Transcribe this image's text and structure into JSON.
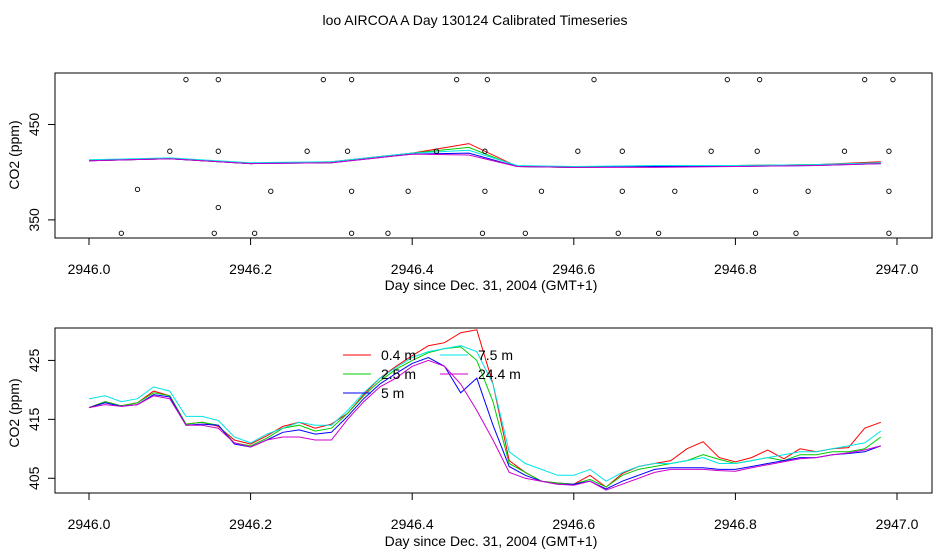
{
  "title": "loo AIRCOA A  Day 130124  Calibrated Timeseries",
  "chart_data": [
    {
      "type": "line",
      "xlabel": "Day since Dec. 31, 2004 (GMT+1)",
      "ylabel": "CO2 (ppm)",
      "xlim": [
        2946.0,
        2947.0
      ],
      "ylim": [
        331,
        504
      ],
      "xticks": [
        "2946.0",
        "2946.2",
        "2946.4",
        "2946.6",
        "2946.8",
        "2947.0"
      ],
      "xtick_values": [
        2946.0,
        2946.2,
        2946.4,
        2946.6,
        2946.8,
        2947.0
      ],
      "yticks": [
        "350",
        "450"
      ],
      "ytick_values": [
        350,
        450
      ],
      "series": [
        {
          "color": "#ff0000",
          "x": [
            2946.0,
            2946.1,
            2946.2,
            2946.3,
            2946.4,
            2946.47,
            2946.53,
            2946.6,
            2946.7,
            2946.8,
            2946.9,
            2946.98
          ],
          "values": [
            412,
            414,
            409,
            411,
            420,
            430,
            406,
            405,
            406,
            407,
            408,
            411
          ]
        },
        {
          "color": "#00cc00",
          "x": [
            2946.0,
            2946.1,
            2946.2,
            2946.3,
            2946.4,
            2946.47,
            2946.53,
            2946.6,
            2946.7,
            2946.8,
            2946.9,
            2946.98
          ],
          "values": [
            412,
            414,
            409,
            410,
            420,
            426,
            406,
            405,
            406,
            407,
            408,
            410
          ]
        },
        {
          "color": "#0000ff",
          "x": [
            2946.0,
            2946.1,
            2946.2,
            2946.3,
            2946.4,
            2946.47,
            2946.53,
            2946.6,
            2946.7,
            2946.8,
            2946.9,
            2946.98
          ],
          "values": [
            412,
            414,
            409,
            410,
            419,
            420,
            406,
            405,
            406,
            406,
            407,
            409
          ]
        },
        {
          "color": "#00e5e5",
          "x": [
            2946.0,
            2946.1,
            2946.2,
            2946.3,
            2946.4,
            2946.47,
            2946.53,
            2946.6,
            2946.7,
            2946.8,
            2946.9,
            2946.98
          ],
          "values": [
            413,
            415,
            410,
            411,
            420,
            423,
            407,
            406,
            407,
            407,
            408,
            410
          ]
        },
        {
          "color": "#cc00cc",
          "x": [
            2946.0,
            2946.1,
            2946.2,
            2946.3,
            2946.4,
            2946.47,
            2946.53,
            2946.6,
            2946.7,
            2946.8,
            2946.9,
            2946.98
          ],
          "values": [
            412,
            414,
            409,
            410,
            419,
            418,
            406,
            405,
            405,
            406,
            407,
            409
          ]
        }
      ],
      "markers": {
        "symbol": "open-circle",
        "x": [
          2946.04,
          2946.06,
          2946.1,
          2946.12,
          2946.155,
          2946.16,
          2946.16,
          2946.16,
          2946.205,
          2946.225,
          2946.27,
          2946.29,
          2946.32,
          2946.325,
          2946.325,
          2946.325,
          2946.37,
          2946.395,
          2946.43,
          2946.455,
          2946.487,
          2946.49,
          2946.49,
          2946.493,
          2946.54,
          2946.56,
          2946.605,
          2946.625,
          2946.655,
          2946.66,
          2946.66,
          2946.705,
          2946.725,
          2946.77,
          2946.79,
          2946.825,
          2946.825,
          2946.827,
          2946.83,
          2946.875,
          2946.89,
          2946.935,
          2946.96,
          2946.99,
          2946.99,
          2946.99,
          2946.995
        ],
        "y": [
          336,
          382,
          422,
          497,
          336,
          363,
          422,
          497,
          336,
          380,
          422,
          497,
          422,
          336,
          380,
          497,
          336,
          380,
          422,
          497,
          336,
          380,
          422,
          497,
          336,
          380,
          422,
          497,
          336,
          380,
          422,
          336,
          380,
          422,
          497,
          336,
          380,
          422,
          497,
          336,
          380,
          422,
          497,
          336,
          380,
          422,
          497
        ]
      }
    },
    {
      "type": "line",
      "xlabel": "Day since Dec. 31, 2004 (GMT+1)",
      "ylabel": "CO2 (ppm)",
      "xlim": [
        2946.0,
        2947.0
      ],
      "ylim": [
        402.5,
        430.5
      ],
      "xticks": [
        "2946.0",
        "2946.2",
        "2946.4",
        "2946.6",
        "2946.8",
        "2947.0"
      ],
      "xtick_values": [
        2946.0,
        2946.2,
        2946.4,
        2946.6,
        2946.8,
        2947.0
      ],
      "yticks": [
        "405",
        "415",
        "425"
      ],
      "ytick_values": [
        405,
        415,
        425
      ],
      "legend": {
        "position": "top-center",
        "entries": [
          {
            "name": "0.4 m",
            "color": "#ff0000"
          },
          {
            "name": "2.5 m",
            "color": "#00cc00"
          },
          {
            "name": "5 m",
            "color": "#0000ff"
          },
          {
            "name": "7.5 m",
            "color": "#00e5e5"
          },
          {
            "name": "24.4 m",
            "color": "#cc00cc"
          }
        ]
      },
      "x": [
        2946.0,
        2946.02,
        2946.04,
        2946.06,
        2946.08,
        2946.1,
        2946.12,
        2946.14,
        2946.16,
        2946.18,
        2946.2,
        2946.22,
        2946.24,
        2946.26,
        2946.28,
        2946.3,
        2946.32,
        2946.34,
        2946.36,
        2946.38,
        2946.4,
        2946.42,
        2946.44,
        2946.46,
        2946.48,
        2946.5,
        2946.52,
        2946.54,
        2946.56,
        2946.58,
        2946.6,
        2946.62,
        2946.64,
        2946.66,
        2946.68,
        2946.7,
        2946.72,
        2946.74,
        2946.76,
        2946.78,
        2946.8,
        2946.82,
        2946.84,
        2946.86,
        2946.88,
        2946.9,
        2946.92,
        2946.94,
        2946.96,
        2946.98
      ],
      "series": [
        {
          "name": "0.4 m",
          "color": "#ff0000",
          "values": [
            417.0,
            418.0,
            417.3,
            417.8,
            419.8,
            419.0,
            414.2,
            414.5,
            413.8,
            411.5,
            410.8,
            412.2,
            413.8,
            414.5,
            413.5,
            414.2,
            416.0,
            419.2,
            422.0,
            424.0,
            425.8,
            427.5,
            428.0,
            429.7,
            430.2,
            421.0,
            408.0,
            406.0,
            404.5,
            404.2,
            404.0,
            405.5,
            403.5,
            405.8,
            407.0,
            407.5,
            408.0,
            410.0,
            411.2,
            408.5,
            407.8,
            408.5,
            409.8,
            408.3,
            410.0,
            409.5,
            410.0,
            410.2,
            413.5,
            414.5
          ]
        },
        {
          "name": "2.5 m",
          "color": "#00cc00",
          "values": [
            417.0,
            418.0,
            417.3,
            417.8,
            419.5,
            419.0,
            414.2,
            414.5,
            414.0,
            411.0,
            410.5,
            411.8,
            413.5,
            414.0,
            413.0,
            413.5,
            416.0,
            419.0,
            421.5,
            423.5,
            425.0,
            426.3,
            427.0,
            427.3,
            425.0,
            418.0,
            407.5,
            406.0,
            404.5,
            404.2,
            404.0,
            404.8,
            403.5,
            405.5,
            406.5,
            407.0,
            407.5,
            408.0,
            409.0,
            408.2,
            407.5,
            408.0,
            408.5,
            408.0,
            409.0,
            409.0,
            409.5,
            409.5,
            410.0,
            412.0
          ]
        },
        {
          "name": "5 m",
          "color": "#0000ff",
          "values": [
            417.0,
            417.8,
            417.2,
            417.5,
            419.2,
            418.8,
            414.0,
            414.2,
            414.0,
            410.8,
            410.3,
            411.5,
            412.8,
            413.2,
            412.5,
            412.8,
            415.5,
            418.5,
            421.0,
            422.8,
            424.5,
            425.5,
            424.0,
            419.5,
            422.0,
            414.0,
            407.0,
            405.5,
            404.5,
            404.0,
            404.0,
            404.5,
            403.2,
            404.5,
            405.5,
            406.5,
            406.8,
            406.8,
            406.8,
            406.5,
            406.5,
            407.0,
            407.5,
            408.0,
            408.5,
            408.5,
            409.0,
            409.2,
            409.5,
            410.5
          ]
        },
        {
          "name": "7.5 m",
          "color": "#00e5e5",
          "values": [
            418.5,
            419.0,
            418.0,
            418.5,
            420.5,
            419.8,
            415.5,
            415.5,
            414.8,
            412.0,
            411.0,
            412.5,
            413.5,
            414.5,
            414.0,
            414.0,
            416.5,
            419.5,
            422.0,
            423.8,
            425.5,
            426.5,
            427.0,
            427.5,
            426.5,
            421.0,
            409.5,
            407.5,
            406.5,
            405.5,
            405.5,
            406.5,
            404.5,
            406.0,
            407.0,
            407.5,
            407.5,
            408.0,
            408.5,
            407.5,
            407.5,
            408.0,
            408.5,
            409.0,
            409.5,
            409.5,
            410.0,
            410.5,
            411.0,
            413.0
          ]
        },
        {
          "name": "24.4 m",
          "color": "#cc00cc",
          "values": [
            417.0,
            417.5,
            417.2,
            417.5,
            419.0,
            418.5,
            414.0,
            414.0,
            413.5,
            411.0,
            410.3,
            411.5,
            412.0,
            412.0,
            411.5,
            411.5,
            415.0,
            418.0,
            420.5,
            422.0,
            424.0,
            425.0,
            424.0,
            421.0,
            416.5,
            411.5,
            406.0,
            405.0,
            404.5,
            404.0,
            403.8,
            404.5,
            403.0,
            404.0,
            405.0,
            406.0,
            406.5,
            406.5,
            406.5,
            406.3,
            406.2,
            406.8,
            407.3,
            407.8,
            408.3,
            408.5,
            409.0,
            409.3,
            409.8,
            410.5
          ]
        }
      ]
    }
  ]
}
